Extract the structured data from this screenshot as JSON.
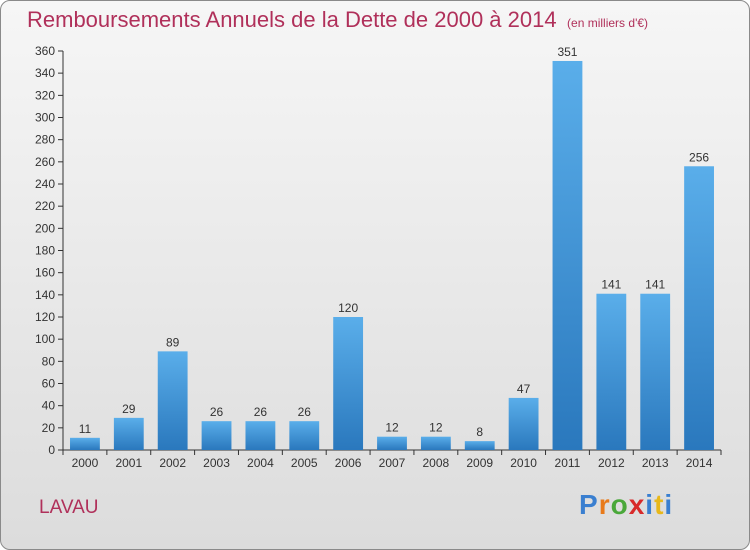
{
  "header": {
    "title": "Remboursements Annuels de la Dette de 2000 à 2014",
    "unit": "(en milliers d'€)"
  },
  "footer": {
    "place": "LAVAU",
    "logo_letters": [
      "P",
      "r",
      "o",
      "x",
      "i",
      "t",
      "i"
    ],
    "logo_colors": [
      "#3a7fd0",
      "#e87a1a",
      "#4aa83a",
      "#d82a2a",
      "#3a7fd0",
      "#e8b81a",
      "#3a7fd0"
    ]
  },
  "chart_data": {
    "type": "bar",
    "categories": [
      "2000",
      "2001",
      "2002",
      "2003",
      "2004",
      "2005",
      "2006",
      "2007",
      "2008",
      "2009",
      "2010",
      "2011",
      "2012",
      "2013",
      "2014"
    ],
    "values": [
      11,
      29,
      89,
      26,
      26,
      26,
      120,
      12,
      12,
      8,
      47,
      351,
      141,
      141,
      256
    ],
    "ylim": [
      0,
      360
    ],
    "yticks": [
      0,
      20,
      40,
      60,
      80,
      100,
      120,
      140,
      160,
      180,
      200,
      220,
      240,
      260,
      280,
      300,
      320,
      340,
      360
    ],
    "grid": false,
    "bar_color": "#3b93d9"
  }
}
